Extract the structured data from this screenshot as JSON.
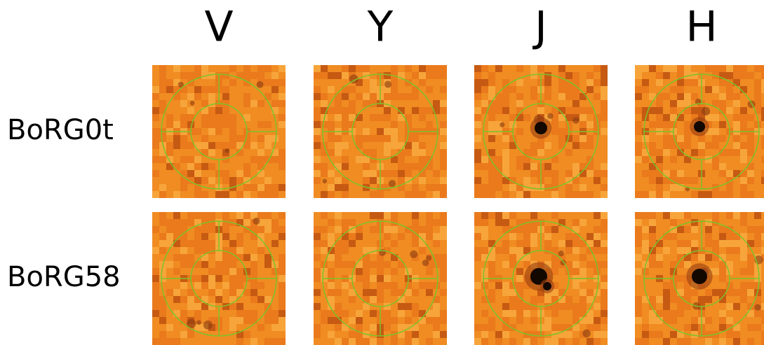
{
  "columns": [
    "V",
    "Y",
    "J",
    "H"
  ],
  "rows": [
    "BoRG0t",
    "BoRG58"
  ]
}
